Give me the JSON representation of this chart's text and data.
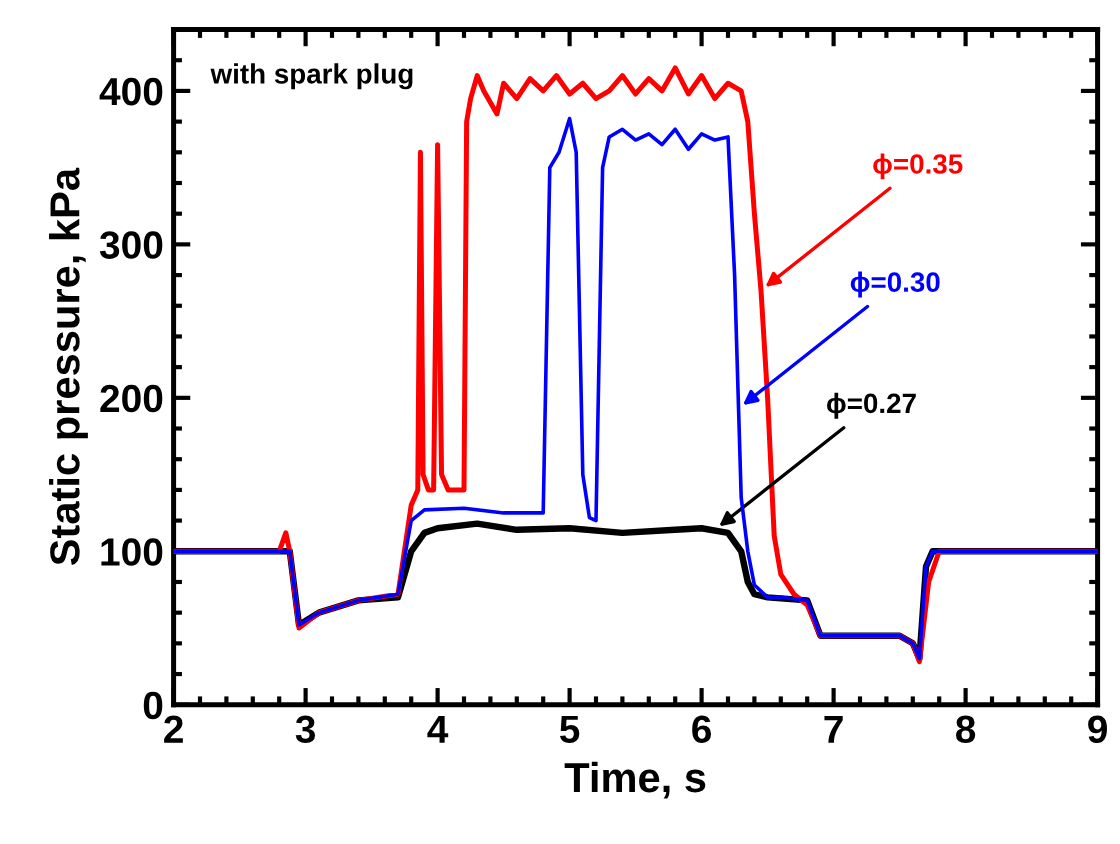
{
  "chart_data": {
    "type": "line",
    "xlabel": "Time, s",
    "ylabel": "Static pressure, kPa",
    "xlim": [
      2,
      9
    ],
    "ylim": [
      0,
      440
    ],
    "xticks": [
      2,
      3,
      4,
      5,
      6,
      7,
      8,
      9
    ],
    "yticks": [
      0,
      100,
      200,
      300,
      400
    ],
    "grid": false,
    "legend": false,
    "marker": "none",
    "line_style": "solid",
    "series": [
      {
        "color": "#000000",
        "x": [
          2,
          2.4,
          2.8,
          2.88,
          2.95,
          3.1,
          3.4,
          3.7,
          3.8,
          3.9,
          4.0,
          4.3,
          4.6,
          5.0,
          5.4,
          5.8,
          6.0,
          6.2,
          6.3,
          6.35,
          6.4,
          6.5,
          6.8,
          6.9,
          7.0,
          7.5,
          7.6,
          7.65,
          7.7,
          7.75,
          8.0,
          9
        ],
        "values": [
          100,
          100,
          100,
          100,
          52,
          60,
          68,
          70,
          100,
          112,
          115,
          118,
          114,
          115,
          112,
          114,
          115,
          112,
          100,
          80,
          72,
          70,
          68,
          45,
          45,
          45,
          40,
          30,
          90,
          100,
          100,
          100
        ]
      },
      {
        "color": "#ff0000",
        "x": [
          2,
          2.4,
          2.8,
          2.85,
          2.88,
          2.95,
          3.1,
          3.4,
          3.7,
          3.8,
          3.85,
          3.87,
          3.89,
          3.93,
          3.97,
          4.0,
          4.03,
          4.08,
          4.2,
          4.22,
          4.25,
          4.3,
          4.35,
          4.45,
          4.5,
          4.6,
          4.7,
          4.8,
          4.9,
          5.0,
          5.1,
          5.2,
          5.3,
          5.4,
          5.5,
          5.6,
          5.7,
          5.8,
          5.9,
          6.0,
          6.1,
          6.2,
          6.3,
          6.35,
          6.4,
          6.45,
          6.5,
          6.55,
          6.6,
          6.7,
          6.8,
          6.9,
          7.0,
          7.5,
          7.6,
          7.65,
          7.72,
          7.8,
          8.0,
          9
        ],
        "values": [
          100,
          100,
          100,
          112,
          100,
          50,
          60,
          68,
          72,
          130,
          140,
          360,
          150,
          140,
          140,
          365,
          150,
          140,
          140,
          380,
          395,
          410,
          400,
          385,
          405,
          395,
          408,
          400,
          410,
          398,
          405,
          395,
          400,
          410,
          398,
          408,
          400,
          415,
          398,
          410,
          395,
          405,
          400,
          380,
          320,
          270,
          200,
          110,
          85,
          72,
          65,
          45,
          45,
          45,
          40,
          28,
          80,
          100,
          100,
          100
        ]
      },
      {
        "color": "#0000ff",
        "x": [
          2,
          2.4,
          2.8,
          2.88,
          2.95,
          3.1,
          3.4,
          3.7,
          3.8,
          3.9,
          4.2,
          4.5,
          4.8,
          4.85,
          4.92,
          5.0,
          5.05,
          5.1,
          5.15,
          5.2,
          5.25,
          5.3,
          5.4,
          5.5,
          5.6,
          5.7,
          5.8,
          5.9,
          6.0,
          6.1,
          6.2,
          6.25,
          6.3,
          6.35,
          6.4,
          6.5,
          6.6,
          6.8,
          6.9,
          7.0,
          7.5,
          7.6,
          7.65,
          7.7,
          7.75,
          8.0,
          9
        ],
        "values": [
          100,
          100,
          100,
          100,
          52,
          60,
          68,
          72,
          120,
          127,
          128,
          125,
          125,
          350,
          360,
          382,
          360,
          150,
          122,
          120,
          350,
          370,
          375,
          368,
          372,
          365,
          375,
          362,
          372,
          368,
          370,
          280,
          135,
          100,
          78,
          70,
          70,
          68,
          45,
          45,
          45,
          40,
          30,
          90,
          100,
          100,
          100
        ]
      }
    ],
    "annotations": [
      "with spark plug",
      {
        "text": "ϕ=0.27",
        "x": 6.1,
        "y": 114
      },
      {
        "text": "ϕ=0.35",
        "x": 6.45,
        "y": 270
      },
      {
        "text": "ϕ=0.30",
        "x": 6.28,
        "y": 193
      }
    ]
  }
}
